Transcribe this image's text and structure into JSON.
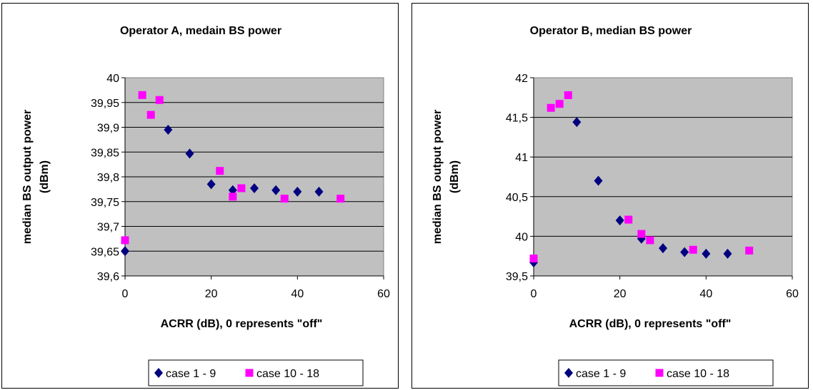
{
  "chart_data": [
    {
      "type": "scatter",
      "title": "Operator A, medain BS power",
      "xlabel": "ACRR (dB), 0 represents \"off\"",
      "ylabel": "median BS output power (dBm)",
      "xlim": [
        0,
        60
      ],
      "ylim": [
        39.6,
        40
      ],
      "xticks": [
        "0",
        "20",
        "40",
        "60"
      ],
      "yticks": [
        "39,6",
        "39,65",
        "39,7",
        "39,75",
        "39,8",
        "39,85",
        "39,9",
        "39,95",
        "40"
      ],
      "grid": "horizontal",
      "legend": "bottom",
      "series": [
        {
          "name": "case 1 - 9",
          "color": "#000080",
          "marker": "diamond",
          "points": [
            [
              0,
              39.65
            ],
            [
              10,
              39.895
            ],
            [
              15,
              39.847
            ],
            [
              20,
              39.785
            ],
            [
              25,
              39.773
            ],
            [
              30,
              39.777
            ],
            [
              35,
              39.773
            ],
            [
              40,
              39.77
            ],
            [
              45,
              39.77
            ]
          ]
        },
        {
          "name": "case 10 - 18",
          "color": "#ff00ff",
          "marker": "square",
          "points": [
            [
              0,
              39.672
            ],
            [
              4,
              39.965
            ],
            [
              6,
              39.925
            ],
            [
              8,
              39.955
            ],
            [
              22,
              39.812
            ],
            [
              25,
              39.76
            ],
            [
              27,
              39.777
            ],
            [
              37,
              39.756
            ],
            [
              50,
              39.756
            ]
          ]
        }
      ]
    },
    {
      "type": "scatter",
      "title": "Operator B, median BS power",
      "xlabel": "ACRR (dB), 0 represents \"off\"",
      "ylabel": "median BS output power (dBm)",
      "xlim": [
        0,
        60
      ],
      "ylim": [
        39.5,
        42
      ],
      "xticks": [
        "0",
        "20",
        "40",
        "60"
      ],
      "yticks": [
        "39,5",
        "40",
        "40,5",
        "41",
        "41,5",
        "42"
      ],
      "grid": "horizontal",
      "legend": "bottom",
      "series": [
        {
          "name": "case 1 - 9",
          "color": "#000080",
          "marker": "diamond",
          "points": [
            [
              0,
              39.67
            ],
            [
              10,
              41.44
            ],
            [
              15,
              40.7
            ],
            [
              20,
              40.2
            ],
            [
              25,
              39.97
            ],
            [
              30,
              39.85
            ],
            [
              35,
              39.8
            ],
            [
              40,
              39.78
            ],
            [
              45,
              39.78
            ]
          ]
        },
        {
          "name": "case 10 - 18",
          "color": "#ff00ff",
          "marker": "square",
          "points": [
            [
              0,
              39.72
            ],
            [
              4,
              41.62
            ],
            [
              6,
              41.67
            ],
            [
              8,
              41.78
            ],
            [
              22,
              40.21
            ],
            [
              25,
              40.03
            ],
            [
              27,
              39.95
            ],
            [
              37,
              39.83
            ],
            [
              50,
              39.82
            ]
          ]
        }
      ]
    }
  ]
}
